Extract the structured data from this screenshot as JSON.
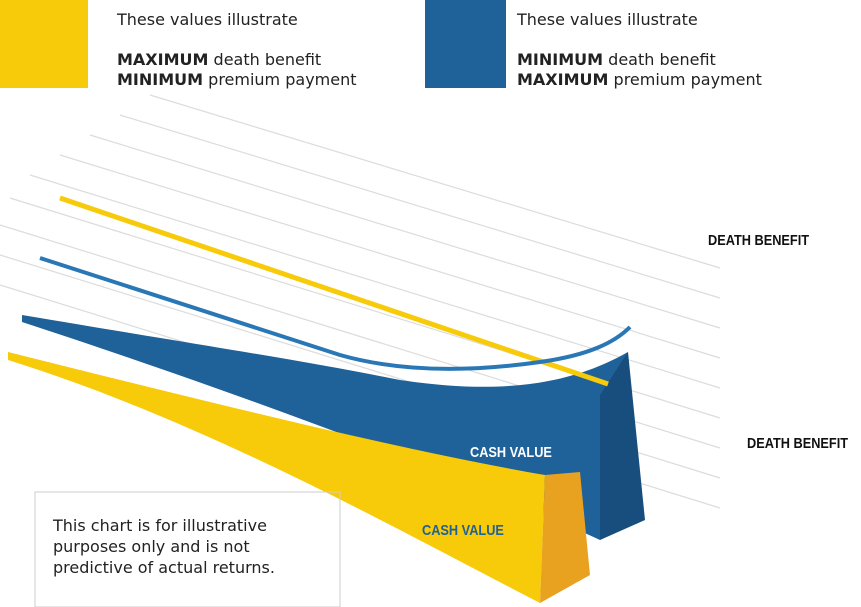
{
  "legend": [
    {
      "intro": "These values illustrate",
      "lines": [
        {
          "bold": "MAXIMUM",
          "text": "death benefit"
        },
        {
          "bold": "MINIMUM",
          "text": "premium payment"
        }
      ]
    },
    {
      "intro": "These values illustrate",
      "lines": [
        {
          "bold": "MINIMUM",
          "text": "death benefit"
        },
        {
          "bold": "MAXIMUM",
          "text": "premium payment"
        }
      ]
    }
  ],
  "labels": {
    "death_benefit_upper": "DEATH BENEFIT",
    "death_benefit_lower": "DEATH BENEFIT",
    "cash_value_blue": "CASH VALUE",
    "cash_value_yellow": "CASH VALUE"
  },
  "note": "This chart is for illustrative purposes only and is not predictive of actual returns."
}
